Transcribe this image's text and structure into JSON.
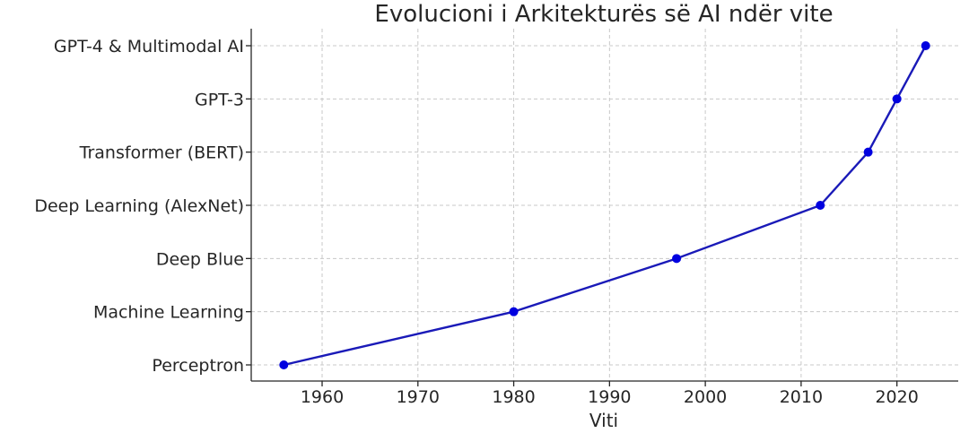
{
  "chart_data": {
    "type": "line",
    "title": "Evolucioni i Arkitekturës së AI ndër vite",
    "xlabel": "Viti",
    "ylabel": "",
    "xlim": [
      1952.6,
      2026.4
    ],
    "xticks": [
      1960,
      1970,
      1980,
      1990,
      2000,
      2010,
      2020
    ],
    "categories": [
      "Perceptron",
      "Machine Learning",
      "Deep Blue",
      "Deep Learning (AlexNet)",
      "Transformer (BERT)",
      "GPT-3",
      "GPT-4 & Multimodal AI"
    ],
    "series": [
      {
        "x": [
          1956,
          1980,
          1997,
          2012,
          2017,
          2020,
          2023
        ],
        "y": [
          "Perceptron",
          "Machine Learning",
          "Deep Blue",
          "Deep Learning (AlexNet)",
          "Transformer (BERT)",
          "GPT-3",
          "GPT-4 & Multimodal AI"
        ]
      }
    ],
    "grid": true,
    "colors": {
      "line": "#1a1ab8",
      "marker": "#0000e0",
      "grid": "#c8c8c8",
      "axis": "#262626"
    }
  }
}
